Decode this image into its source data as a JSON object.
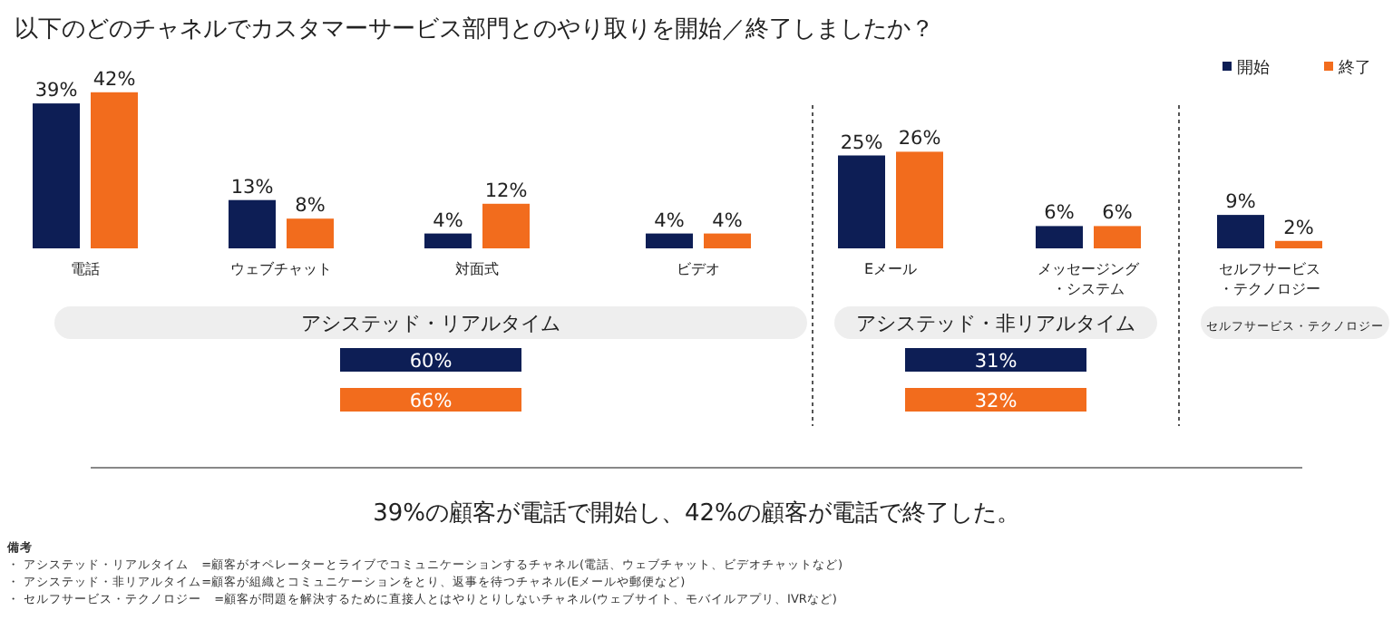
{
  "chart_data": [
    {
      "type": "bar",
      "title": "以下のどのチャネルでカスタマーサービス部門とのやり取りを開始／終了しましたか？",
      "categories": [
        "電話",
        "ウェブチャット",
        "対面式",
        "ビデオ",
        "Eメール",
        "メッセージング・システム",
        "セルフサービス・テクノロジー"
      ],
      "series": [
        {
          "name": "開始",
          "color": "#0d1e55",
          "values": [
            39,
            13,
            4,
            4,
            25,
            6,
            9
          ],
          "value_labels": [
            "39%",
            "13%",
            "4%",
            "4%",
            "25%",
            "6%",
            "9%"
          ]
        },
        {
          "name": "終了",
          "color": "#f26c1d",
          "values": [
            42,
            8,
            12,
            4,
            26,
            6,
            2
          ],
          "value_labels": [
            "42%",
            "8%",
            "12%",
            "4%",
            "26%",
            "6%",
            "2%"
          ]
        }
      ],
      "legend": "top right",
      "annotations": [
        "39%の顧客が電話で開始し、42%の顧客が電話で終了した。",
        "備考",
        "・ アシステッド・リアルタイム　=顧客がオペレーターとライブでコミュニケーションするチャネル(電話、ウェブチャット、ビデオチャットなど)",
        "・ アシステッド・非リアルタイム=顧客が組織とコミュニケーションをとり、返事を待つチャネル(Eメールや郵便など)",
        "・ セルフサービス・テクノロジー　=顧客が問題を解決するために直接人とはやりとりしないチャネル(ウェブサイト、モバイルアプリ、IVRなど)"
      ]
    },
    {
      "type": "other",
      "categories": [
        "アシステッド・リアルタイム",
        "アシステッド・非リアルタイム",
        "セルフサービス・テクノロジー"
      ],
      "series": [
        {
          "color": "#0d1e55",
          "values": [
            60,
            31,
            null
          ],
          "value_labels": [
            "60%",
            "31%",
            null
          ]
        },
        {
          "color": "#f26c1d",
          "values": [
            66,
            32,
            null
          ],
          "value_labels": [
            "66%",
            "32%",
            null
          ]
        }
      ]
    }
  ]
}
